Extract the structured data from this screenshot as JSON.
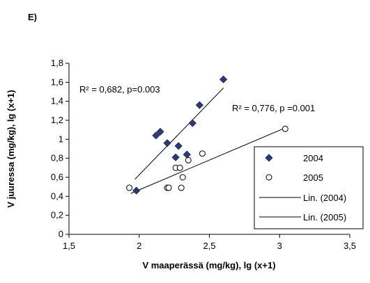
{
  "panel_label": "E)",
  "chart_data": {
    "type": "scatter",
    "xlabel": "V maaperässä (mg/kg), lg (x+1)",
    "ylabel": "V juuressa (mg/kg), lg (x+1)",
    "xlim": [
      1.5,
      3.5
    ],
    "ylim": [
      0,
      1.8
    ],
    "x_ticks": [
      1.5,
      2,
      2.5,
      3,
      3.5
    ],
    "x_tick_labels": [
      "1,5",
      "2",
      "2,5",
      "3",
      "3,5"
    ],
    "y_ticks": [
      0,
      0.2,
      0.4,
      0.6,
      0.8,
      1,
      1.2,
      1.4,
      1.6,
      1.8
    ],
    "y_tick_labels": [
      "0",
      "0,2",
      "0,4",
      "0,6",
      "0,8",
      "1",
      "1,2",
      "1,4",
      "1,6",
      "1,8"
    ],
    "grid": false,
    "legend_position": "right",
    "series": [
      {
        "name": "2004",
        "marker": "diamond-filled",
        "color": "#2a3a7a",
        "points": [
          [
            1.98,
            0.46
          ],
          [
            2.12,
            1.04
          ],
          [
            2.15,
            1.08
          ],
          [
            2.2,
            0.96
          ],
          [
            2.26,
            0.81
          ],
          [
            2.28,
            0.93
          ],
          [
            2.34,
            0.84
          ],
          [
            2.38,
            1.17
          ],
          [
            2.43,
            1.36
          ],
          [
            2.6,
            1.63
          ]
        ]
      },
      {
        "name": "2005",
        "marker": "circle-open",
        "color": "#000000",
        "points": [
          [
            1.93,
            0.49
          ],
          [
            2.2,
            0.49
          ],
          [
            2.21,
            0.49
          ],
          [
            2.26,
            0.7
          ],
          [
            2.29,
            0.7
          ],
          [
            2.3,
            0.49
          ],
          [
            2.31,
            0.6
          ],
          [
            2.35,
            0.78
          ],
          [
            2.45,
            0.85
          ],
          [
            3.04,
            1.11
          ]
        ]
      }
    ],
    "trendlines": [
      {
        "name": "Lin. (2004)",
        "x": [
          1.97,
          2.6
        ],
        "y": [
          0.58,
          1.54
        ],
        "annotation": "R² = 0,682, p=0.003"
      },
      {
        "name": "Lin. (2005)",
        "x": [
          1.94,
          3.04
        ],
        "y": [
          0.43,
          1.12
        ],
        "annotation": "R² = 0,776, p =0.001"
      }
    ]
  }
}
